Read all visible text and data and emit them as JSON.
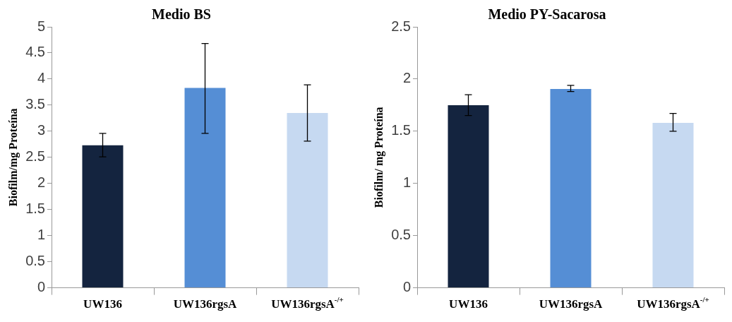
{
  "chart_data": [
    {
      "type": "bar",
      "title": "Medio BS",
      "ylabel": "Biofilm/mg Proteína",
      "categories": [
        "UW136",
        "UW136rgsA",
        "UW136rgsA$^{-/+}$"
      ],
      "values": [
        2.73,
        3.83,
        3.35
      ],
      "colors": [
        "#14243f",
        "#558ed5",
        "#c6d9f1"
      ],
      "errors": [
        [
          2.51,
          2.96
        ],
        [
          2.96,
          4.68
        ],
        [
          2.81,
          3.89
        ]
      ],
      "ylim": [
        0,
        5
      ],
      "yticks": [
        0,
        0.5,
        1,
        1.5,
        2,
        2.5,
        3,
        3.5,
        4,
        4.5,
        5
      ]
    },
    {
      "type": "bar",
      "title": "Medio PY-Sacarosa",
      "ylabel": "Biofilm/ mg Proteína",
      "categories": [
        "UW136",
        "UW136rgsA",
        "UW136rgsA$^{-/+}$"
      ],
      "values": [
        1.75,
        1.905,
        1.58
      ],
      "colors": [
        "#14243f",
        "#558ed5",
        "#c6d9f1"
      ],
      "errors": [
        [
          1.65,
          1.85
        ],
        [
          1.88,
          1.94
        ],
        [
          1.5,
          1.67
        ]
      ],
      "ylim": [
        0,
        2.5
      ],
      "yticks": [
        0,
        0.5,
        1,
        1.5,
        2,
        2.5
      ]
    }
  ]
}
